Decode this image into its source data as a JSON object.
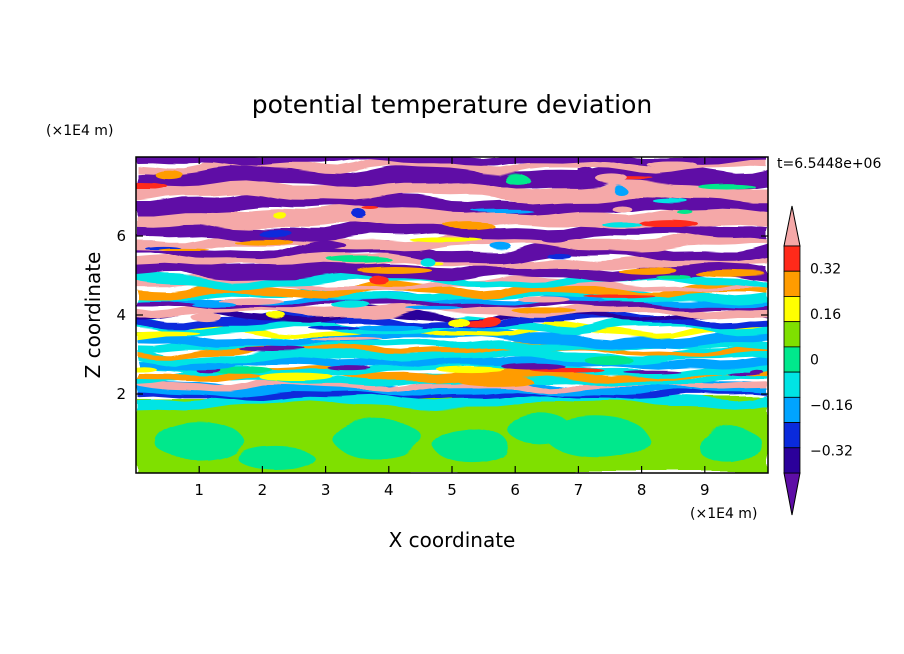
{
  "chart_data": {
    "type": "heatmap",
    "title": "potential temperature deviation",
    "xlabel": "X coordinate",
    "ylabel": "Z coordinate",
    "x_unit": "(×1E4 m)",
    "y_unit": "(×1E4 m)",
    "time_label": "t=6.5448e+06",
    "xlim": [
      0,
      10
    ],
    "ylim": [
      0,
      8
    ],
    "x_ticks": [
      1,
      2,
      3,
      4,
      5,
      6,
      7,
      8,
      9
    ],
    "y_ticks": [
      2,
      4,
      6
    ],
    "colorbar": {
      "levels": [
        -0.4,
        -0.32,
        -0.24,
        -0.16,
        -0.08,
        0,
        0.08,
        0.16,
        0.24,
        0.32,
        0.4
      ],
      "labels": [
        "0.32",
        "0.16",
        "0",
        "−0.16",
        "−0.32"
      ],
      "label_values": [
        0.32,
        0.16,
        0,
        -0.16,
        -0.32
      ],
      "colors": [
        "#5e0da6",
        "#2b009a",
        "#0a2adc",
        "#00a4ff",
        "#00e4e4",
        "#00e88c",
        "#7fe000",
        "#ffff00",
        "#ff9c00",
        "#ff2a1a",
        "#f5a8a8"
      ],
      "extend": "both"
    },
    "palette_keys": [
      "#00e88c",
      "#7fe000",
      "#00e4e4",
      "#00a4ff",
      "#0a2adc",
      "#2b009a",
      "#5e0da6",
      "#ffff00",
      "#ff9c00",
      "#ff2a1a",
      "#f5a8a8"
    ]
  }
}
